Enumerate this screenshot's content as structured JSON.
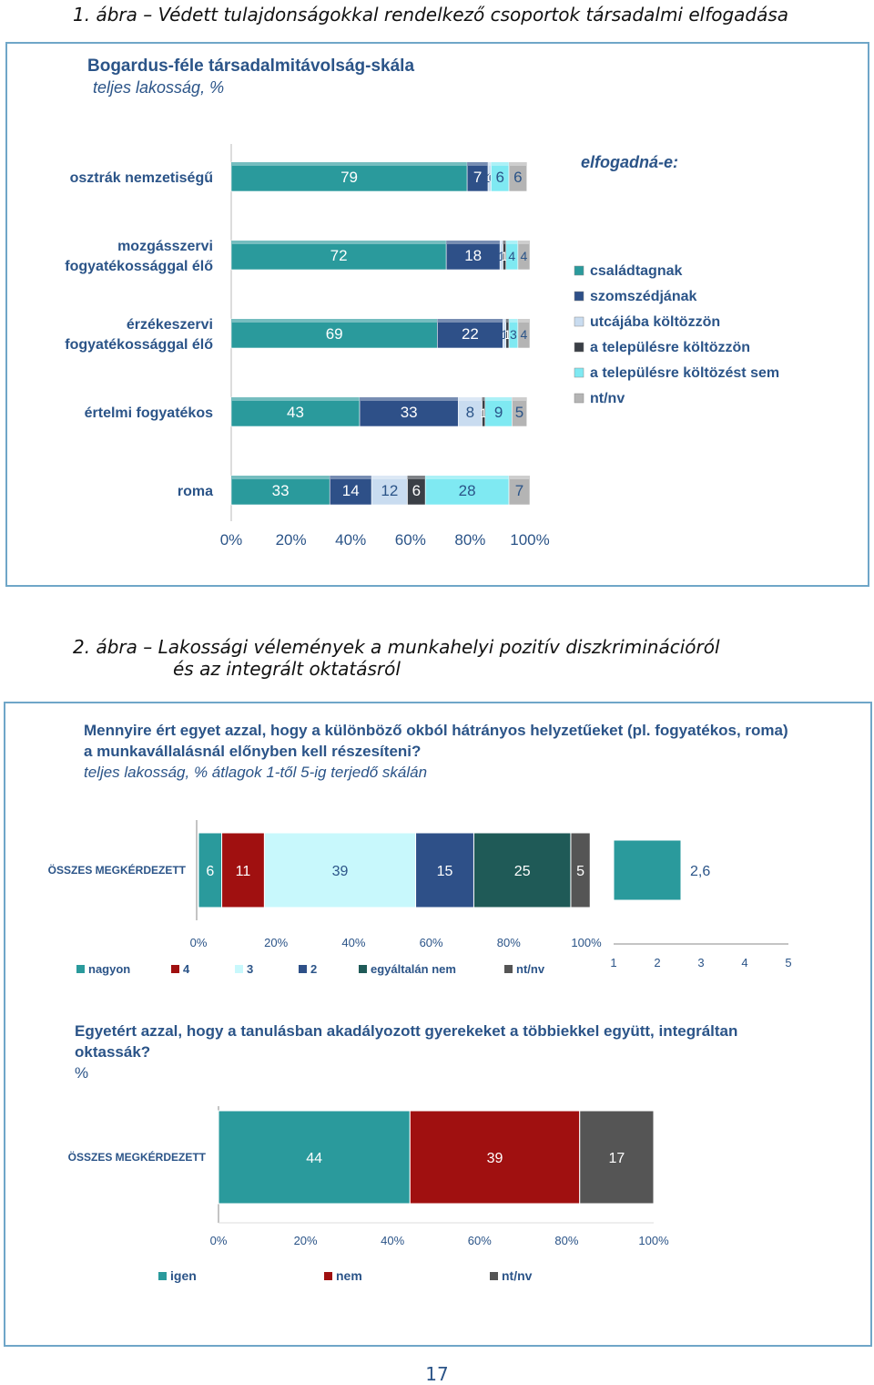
{
  "figure1": {
    "caption": "1.  ábra – Védett tulajdonságokkal rendelkező csoportok társadalmi elfogadása",
    "title": "Bogardus-féle társadalmitávolság-skála",
    "subtitle": "teljes lakosság, %",
    "legend_title": "elfogadná-e:"
  },
  "figure2": {
    "caption_line1": "2.  ábra – Lakossági vélemények a munkahelyi pozitív diszkriminációról",
    "caption_line2": "és az integrált oktatásról",
    "q1_title_line1": "Mennyire ért egyet azzal, hogy a különböző okból hátrányos helyzetűeket (pl. fogyatékos, roma)",
    "q1_title_line2": "a munkavállalásnál előnyben kell részesíteni?",
    "q1_subtitle": "teljes lakosság, % átlagok 1-től 5-ig terjedő skálán",
    "q2_title_line1": "Egyetért azzal, hogy a tanulásban akadályozott gyerekeket a többiekkel együtt, integráltan",
    "q2_title_line2": "oktassák?",
    "q2_subtitle": "%"
  },
  "page_number": "17",
  "chart_data": [
    {
      "type": "bar",
      "orientation": "horizontal-stacked-100",
      "title": "Bogardus-féle társadalmitávolság-skála",
      "subtitle": "teljes lakosság, %",
      "legend_title": "elfogadná-e:",
      "legend_position": "right",
      "categories": [
        "osztrák nemzetiségű",
        "mozgásszervi fogyatékossággal élő",
        "érzékeszervi fogyatékossággal élő",
        "értelmi fogyatékos",
        "roma"
      ],
      "category_lines": [
        [
          "osztrák nemzetiségű"
        ],
        [
          "mozgásszervi",
          "fogyatékossággal élő"
        ],
        [
          "érzékeszervi",
          "fogyatékossággal élő"
        ],
        [
          "értelmi fogyatékos"
        ],
        [
          "roma"
        ]
      ],
      "series": [
        {
          "name": "családtagnak",
          "color": "#2a9a9c",
          "values": [
            79,
            72,
            69,
            43,
            33
          ]
        },
        {
          "name": "szomszédjának",
          "color": "#2e5088",
          "values": [
            7,
            18,
            22,
            33,
            14
          ]
        },
        {
          "name": "utcájába költözzön",
          "color": "#c9dcf0",
          "values": [
            1,
            1,
            1,
            8,
            12
          ]
        },
        {
          "name": "a településre költözzön",
          "color": "#3a3f46",
          "values": [
            0,
            1,
            1,
            1,
            6
          ]
        },
        {
          "name": "a településre költözést sem",
          "color": "#7fe9f2",
          "values": [
            6,
            4,
            3,
            9,
            28
          ]
        },
        {
          "name": "nt/nv",
          "color": "#b4b4b4",
          "values": [
            6,
            4,
            4,
            5,
            7
          ]
        }
      ],
      "data_labels": [
        [
          "79",
          "7",
          "1",
          "0",
          "6",
          "6"
        ],
        [
          "72",
          "18",
          "1",
          "1",
          "4",
          "4"
        ],
        [
          "69",
          "22",
          "1",
          "1",
          "3",
          "4"
        ],
        [
          "43",
          "33",
          "8",
          "1",
          "9",
          "5"
        ],
        [
          "33",
          "14",
          "12",
          "6",
          "28",
          "7"
        ]
      ],
      "xticks": [
        "0%",
        "20%",
        "40%",
        "60%",
        "80%",
        "100%"
      ],
      "xlim": [
        0,
        100
      ]
    },
    {
      "type": "bar",
      "orientation": "horizontal-stacked-100",
      "title": "Mennyire ért egyet azzal, hogy a különböző okból hátrányos helyzetűeket (pl. fogyatékos, roma) a munkavállalásnál előnyben kell részesíteni?",
      "subtitle": "teljes lakosság, % átlagok 1-től 5-ig terjedő skálán",
      "categories": [
        "ÖSSZES MEGKÉRDEZETT"
      ],
      "series": [
        {
          "name": "nagyon",
          "color": "#2a9a9c",
          "values": [
            6
          ]
        },
        {
          "name": "4",
          "color": "#a01010",
          "values": [
            11
          ]
        },
        {
          "name": "3",
          "color": "#c8f8fc",
          "values": [
            39
          ]
        },
        {
          "name": "2",
          "color": "#2e5088",
          "values": [
            15
          ]
        },
        {
          "name": "egyáltalán nem",
          "color": "#1f5a57",
          "values": [
            25
          ]
        },
        {
          "name": "nt/nv",
          "color": "#555555",
          "values": [
            5
          ]
        }
      ],
      "xticks": [
        "0%",
        "20%",
        "40%",
        "60%",
        "80%",
        "100%"
      ],
      "xlim": [
        0,
        100
      ],
      "legend_position": "bottom",
      "mean": {
        "value": 2.6,
        "label": "2,6",
        "scale_ticks": [
          "1",
          "2",
          "3",
          "4",
          "5"
        ],
        "xlim": [
          1,
          5
        ],
        "color": "#2a9a9c"
      }
    },
    {
      "type": "bar",
      "orientation": "horizontal-stacked-100",
      "title": "Egyetért azzal, hogy a tanulásban akadályozott gyerekeket a többiekkel együtt, integráltan oktassák?",
      "subtitle": "%",
      "categories": [
        "ÖSSZES MEGKÉRDEZETT"
      ],
      "series": [
        {
          "name": "igen",
          "color": "#2a9a9c",
          "values": [
            44
          ]
        },
        {
          "name": "nem",
          "color": "#a01010",
          "values": [
            39
          ]
        },
        {
          "name": "nt/nv",
          "color": "#555555",
          "values": [
            17
          ]
        }
      ],
      "xticks": [
        "0%",
        "20%",
        "40%",
        "60%",
        "80%",
        "100%"
      ],
      "xlim": [
        0,
        100
      ],
      "legend_position": "bottom"
    }
  ]
}
